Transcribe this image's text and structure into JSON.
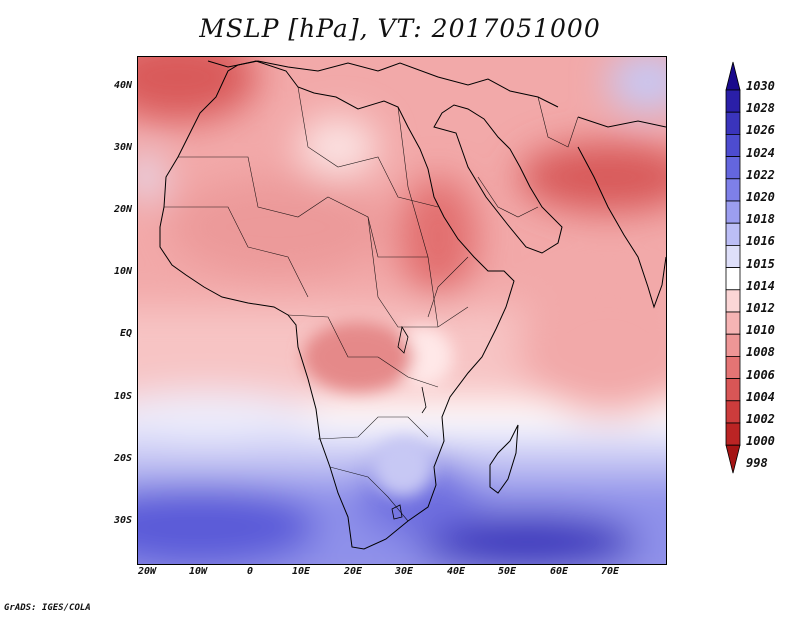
{
  "title": "MSLP [hPa], VT: 2017051000",
  "footer": "GrADS: IGES/COLA",
  "map": {
    "lat_labels": [
      "40N",
      "30N",
      "20N",
      "10N",
      "EQ",
      "10S",
      "20S",
      "30S"
    ],
    "lat_values": [
      40,
      30,
      20,
      10,
      0,
      -10,
      -20,
      -30
    ],
    "lon_labels": [
      "20W",
      "10W",
      "0",
      "10E",
      "20E",
      "30E",
      "40E",
      "50E",
      "60E",
      "70E"
    ],
    "lon_values": [
      -20,
      -10,
      0,
      10,
      20,
      30,
      40,
      50,
      60,
      70
    ],
    "lon_range": [
      -21,
      80
    ],
    "lat_range": [
      -37,
      45
    ]
  },
  "colorbar": {
    "labels": [
      "1030",
      "1028",
      "1026",
      "1024",
      "1022",
      "1020",
      "1018",
      "1016",
      "1015",
      "1014",
      "1012",
      "1010",
      "1008",
      "1006",
      "1004",
      "1002",
      "1000",
      "998"
    ],
    "colors": [
      "#1a0a8c",
      "#2a1fa8",
      "#3a34bc",
      "#4d4cd0",
      "#6466de",
      "#7e80e8",
      "#9c9ef0",
      "#bcbef6",
      "#dedff9",
      "#ffffff",
      "#fbd6d6",
      "#f6b4b4",
      "#ee9696",
      "#e47474",
      "#d85656",
      "#cc3c3c",
      "#bb2424",
      "#a51414"
    ]
  }
}
